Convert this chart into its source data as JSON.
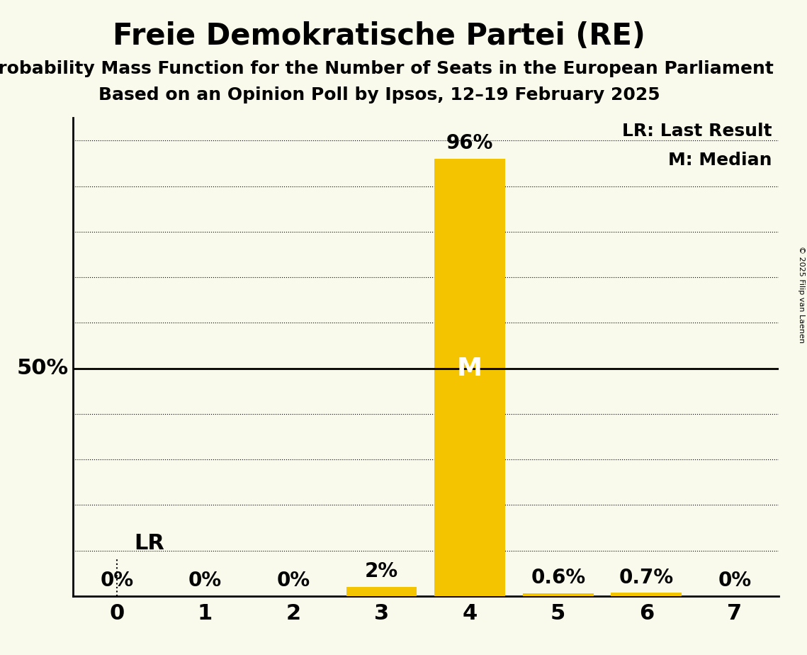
{
  "title": "Freie Demokratische Partei (RE)",
  "subtitle1": "Probability Mass Function for the Number of Seats in the European Parliament",
  "subtitle2": "Based on an Opinion Poll by Ipsos, 12–19 February 2025",
  "copyright": "© 2025 Filip van Laenen",
  "seats": [
    0,
    1,
    2,
    3,
    4,
    5,
    6,
    7
  ],
  "probabilities": [
    0.0,
    0.0,
    0.0,
    0.02,
    0.96,
    0.006,
    0.007,
    0.0
  ],
  "bar_color": "#F5C400",
  "median_seat": 4,
  "lr_seat": 0,
  "label_50pct": "50%",
  "label_lr": "LR",
  "label_m": "M",
  "legend_lr": "LR: Last Result",
  "legend_m": "M: Median",
  "bar_labels": [
    "0%",
    "0%",
    "0%",
    "2%",
    "96%",
    "0.6%",
    "0.7%",
    "0%"
  ],
  "background_color": "#FAFAEC",
  "bar_label_color_inside": "#FFFFFF",
  "bar_label_color_outside": "#000000",
  "ylim": [
    0.0,
    1.05
  ],
  "xlim": [
    -0.5,
    7.5
  ],
  "title_fontsize": 30,
  "subtitle_fontsize": 18,
  "tick_fontsize": 22,
  "bar_label_fontsize": 20,
  "legend_fontsize": 18,
  "lr_label_fontsize": 22,
  "fifty_pct_fontsize": 22,
  "m_label_fontsize": 26
}
